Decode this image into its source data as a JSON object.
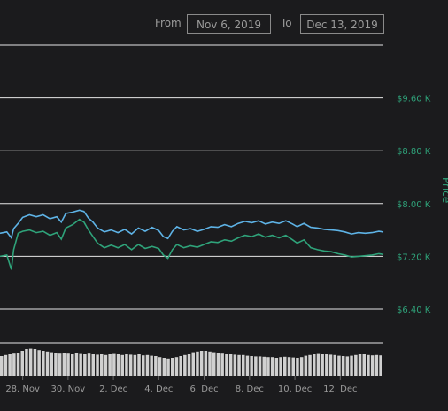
{
  "range": {
    "from_label": "From",
    "from_value": "Nov 6, 2019",
    "to_label": "To",
    "to_value": "Dec 13, 2019"
  },
  "colors": {
    "background": "#1b1b1d",
    "gridline": "#e6e6e6",
    "price_line": "#5eb3e6",
    "price_line_2": "#2fa37a",
    "volume_bar": "#d0d0d0",
    "axis_text": "#9a9a9a",
    "price_axis_text": "#2fa37a"
  },
  "chart_data": {
    "type": "line",
    "title": "",
    "ylabel": "Price",
    "ylim": [
      6000,
      10400
    ],
    "grid": true,
    "y_ticks": [
      {
        "value": 9600,
        "label": "$9.60 K"
      },
      {
        "value": 8800,
        "label": "$8.80 K"
      },
      {
        "value": 8000,
        "label": "$8.00 K"
      },
      {
        "value": 7200,
        "label": "$7.20 K"
      },
      {
        "value": 6400,
        "label": "$6.40 K"
      }
    ],
    "x_ticks": [
      {
        "day": 28,
        "label": "28. Nov"
      },
      {
        "day": 30,
        "label": "30. Nov"
      },
      {
        "day": 32,
        "label": "2. Dec"
      },
      {
        "day": 34,
        "label": "4. Dec"
      },
      {
        "day": 36,
        "label": "6. Dec"
      },
      {
        "day": 38,
        "label": "8. Dec"
      },
      {
        "day": 40,
        "label": "10. Dec"
      },
      {
        "day": 42,
        "label": "12. Dec"
      }
    ],
    "xlim": [
      27.0,
      43.9
    ],
    "series": [
      {
        "values": [
          [
            27.0,
            7550
          ],
          [
            27.3,
            7570
          ],
          [
            27.5,
            7480
          ],
          [
            27.6,
            7620
          ],
          [
            27.8,
            7700
          ],
          [
            28.0,
            7790
          ],
          [
            28.3,
            7830
          ],
          [
            28.6,
            7800
          ],
          [
            28.9,
            7830
          ],
          [
            29.2,
            7770
          ],
          [
            29.5,
            7800
          ],
          [
            29.7,
            7720
          ],
          [
            29.9,
            7850
          ],
          [
            30.2,
            7870
          ],
          [
            30.5,
            7900
          ],
          [
            30.7,
            7880
          ],
          [
            30.9,
            7780
          ],
          [
            31.1,
            7720
          ],
          [
            31.3,
            7630
          ],
          [
            31.6,
            7570
          ],
          [
            31.9,
            7600
          ],
          [
            32.2,
            7560
          ],
          [
            32.5,
            7610
          ],
          [
            32.8,
            7540
          ],
          [
            33.1,
            7630
          ],
          [
            33.4,
            7580
          ],
          [
            33.7,
            7640
          ],
          [
            34.0,
            7590
          ],
          [
            34.2,
            7500
          ],
          [
            34.4,
            7470
          ],
          [
            34.6,
            7580
          ],
          [
            34.8,
            7650
          ],
          [
            35.1,
            7600
          ],
          [
            35.4,
            7620
          ],
          [
            35.7,
            7580
          ],
          [
            36.0,
            7610
          ],
          [
            36.3,
            7650
          ],
          [
            36.6,
            7640
          ],
          [
            36.9,
            7680
          ],
          [
            37.2,
            7650
          ],
          [
            37.5,
            7700
          ],
          [
            37.8,
            7730
          ],
          [
            38.1,
            7710
          ],
          [
            38.4,
            7740
          ],
          [
            38.7,
            7690
          ],
          [
            39.0,
            7720
          ],
          [
            39.3,
            7700
          ],
          [
            39.6,
            7740
          ],
          [
            39.9,
            7690
          ],
          [
            40.1,
            7650
          ],
          [
            40.4,
            7700
          ],
          [
            40.7,
            7640
          ],
          [
            41.0,
            7630
          ],
          [
            41.3,
            7610
          ],
          [
            41.6,
            7600
          ],
          [
            41.9,
            7590
          ],
          [
            42.2,
            7570
          ],
          [
            42.5,
            7540
          ],
          [
            42.8,
            7560
          ],
          [
            43.1,
            7550
          ],
          [
            43.4,
            7560
          ],
          [
            43.7,
            7580
          ],
          [
            43.9,
            7570
          ]
        ]
      },
      {
        "values": [
          [
            27.0,
            7200
          ],
          [
            27.3,
            7220
          ],
          [
            27.5,
            7000
          ],
          [
            27.6,
            7300
          ],
          [
            27.8,
            7550
          ],
          [
            28.0,
            7580
          ],
          [
            28.3,
            7600
          ],
          [
            28.6,
            7560
          ],
          [
            28.9,
            7580
          ],
          [
            29.2,
            7520
          ],
          [
            29.5,
            7560
          ],
          [
            29.7,
            7460
          ],
          [
            29.9,
            7630
          ],
          [
            30.2,
            7680
          ],
          [
            30.5,
            7760
          ],
          [
            30.7,
            7720
          ],
          [
            30.9,
            7600
          ],
          [
            31.1,
            7500
          ],
          [
            31.3,
            7400
          ],
          [
            31.6,
            7330
          ],
          [
            31.9,
            7370
          ],
          [
            32.2,
            7330
          ],
          [
            32.5,
            7380
          ],
          [
            32.8,
            7300
          ],
          [
            33.1,
            7380
          ],
          [
            33.4,
            7320
          ],
          [
            33.7,
            7350
          ],
          [
            34.0,
            7320
          ],
          [
            34.2,
            7220
          ],
          [
            34.4,
            7170
          ],
          [
            34.6,
            7300
          ],
          [
            34.8,
            7380
          ],
          [
            35.1,
            7330
          ],
          [
            35.4,
            7360
          ],
          [
            35.7,
            7340
          ],
          [
            36.0,
            7380
          ],
          [
            36.3,
            7420
          ],
          [
            36.6,
            7410
          ],
          [
            36.9,
            7450
          ],
          [
            37.2,
            7430
          ],
          [
            37.5,
            7480
          ],
          [
            37.8,
            7520
          ],
          [
            38.1,
            7500
          ],
          [
            38.4,
            7540
          ],
          [
            38.7,
            7490
          ],
          [
            39.0,
            7520
          ],
          [
            39.3,
            7480
          ],
          [
            39.6,
            7520
          ],
          [
            39.9,
            7450
          ],
          [
            40.1,
            7400
          ],
          [
            40.4,
            7450
          ],
          [
            40.7,
            7330
          ],
          [
            41.0,
            7300
          ],
          [
            41.3,
            7280
          ],
          [
            41.6,
            7270
          ],
          [
            41.9,
            7240
          ],
          [
            42.2,
            7220
          ],
          [
            42.5,
            7190
          ],
          [
            42.8,
            7200
          ],
          [
            43.1,
            7210
          ],
          [
            43.4,
            7220
          ],
          [
            43.7,
            7240
          ],
          [
            43.9,
            7230
          ]
        ]
      }
    ],
    "volume": [
      0.55,
      0.58,
      0.6,
      0.62,
      0.64,
      0.7,
      0.75,
      0.76,
      0.75,
      0.72,
      0.7,
      0.68,
      0.66,
      0.64,
      0.62,
      0.64,
      0.62,
      0.6,
      0.63,
      0.61,
      0.6,
      0.62,
      0.6,
      0.59,
      0.6,
      0.58,
      0.6,
      0.61,
      0.6,
      0.58,
      0.6,
      0.59,
      0.58,
      0.6,
      0.57,
      0.58,
      0.56,
      0.55,
      0.52,
      0.5,
      0.48,
      0.5,
      0.52,
      0.55,
      0.58,
      0.6,
      0.66,
      0.68,
      0.7,
      0.7,
      0.68,
      0.66,
      0.64,
      0.62,
      0.6,
      0.6,
      0.59,
      0.58,
      0.58,
      0.56,
      0.55,
      0.54,
      0.54,
      0.53,
      0.52,
      0.52,
      0.5,
      0.52,
      0.53,
      0.52,
      0.51,
      0.5,
      0.52,
      0.56,
      0.58,
      0.6,
      0.61,
      0.6,
      0.6,
      0.59,
      0.58,
      0.56,
      0.55,
      0.54,
      0.56,
      0.58,
      0.6,
      0.6,
      0.58,
      0.57,
      0.58,
      0.57
    ]
  }
}
